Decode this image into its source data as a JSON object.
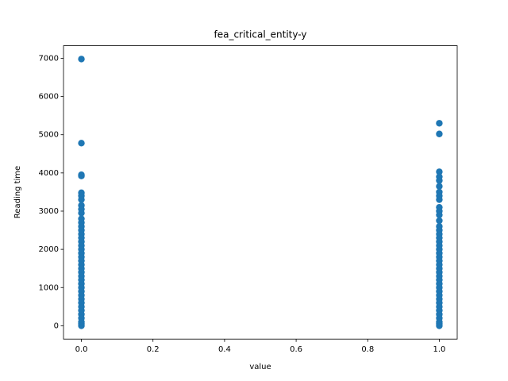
{
  "chart_data": {
    "type": "scatter",
    "title": "fea_critical_entity-y",
    "x_label": "value",
    "y_label": "Reading time",
    "color": "#1f77b4",
    "x": [
      0,
      0,
      0,
      0,
      0,
      0,
      0,
      0,
      0,
      0,
      0,
      0,
      0,
      0,
      0,
      0,
      0,
      0,
      0,
      0,
      0,
      0,
      0,
      0,
      0,
      0,
      0,
      0,
      0,
      0,
      0,
      0,
      0,
      0,
      0,
      0,
      0,
      0,
      0,
      0,
      1,
      1,
      1,
      1,
      1,
      1,
      1,
      1,
      1,
      1,
      1,
      1,
      1,
      1,
      1,
      1,
      1,
      1,
      1,
      1,
      1,
      1,
      1,
      1,
      1,
      1,
      1,
      1,
      1,
      1,
      1,
      1,
      1,
      1,
      1,
      1,
      1,
      1,
      1,
      1,
      1
    ],
    "values": [
      6980,
      4780,
      3950,
      3920,
      3480,
      3400,
      3300,
      3150,
      3050,
      2950,
      2800,
      2700,
      2600,
      2500,
      2400,
      2300,
      2200,
      2100,
      2000,
      1900,
      1800,
      1700,
      1600,
      1500,
      1400,
      1300,
      1200,
      1100,
      1000,
      900,
      800,
      700,
      600,
      500,
      400,
      300,
      200,
      100,
      50,
      0,
      5300,
      5020,
      4030,
      3900,
      3800,
      3650,
      3500,
      3400,
      3300,
      3100,
      3000,
      2900,
      2750,
      2600,
      2500,
      2400,
      2300,
      2200,
      2100,
      2000,
      1900,
      1800,
      1700,
      1600,
      1500,
      1400,
      1300,
      1200,
      1100,
      1000,
      900,
      800,
      700,
      600,
      500,
      400,
      300,
      200,
      100,
      50,
      0
    ],
    "xlim": [
      -0.05,
      1.05
    ],
    "xticks": [
      {
        "value": 0,
        "label": "0.0"
      },
      {
        "value": 0.2,
        "label": "0.2"
      },
      {
        "value": 0.4,
        "label": "0.4"
      },
      {
        "value": 0.6,
        "label": "0.6"
      },
      {
        "value": 0.8,
        "label": "0.8"
      },
      {
        "value": 1,
        "label": "1.0"
      }
    ],
    "ylim": [
      -349,
      7329
    ],
    "yticks": [
      0,
      1000,
      2000,
      3000,
      4000,
      5000,
      6000,
      7000
    ]
  }
}
